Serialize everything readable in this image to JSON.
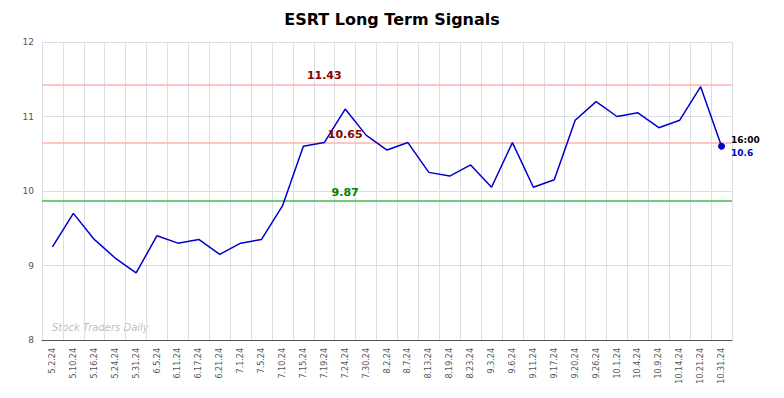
{
  "chart_data": {
    "type": "line",
    "title": "ESRT Long Term Signals",
    "categories": [
      "5.2.24",
      "5.10.24",
      "5.16.24",
      "5.24.24",
      "5.31.24",
      "6.5.24",
      "6.11.24",
      "6.17.24",
      "6.21.24",
      "7.1.24",
      "7.5.24",
      "7.10.24",
      "7.15.24",
      "7.19.24",
      "7.24.24",
      "7.30.24",
      "8.2.24",
      "8.7.24",
      "8.13.24",
      "8.19.24",
      "8.23.24",
      "9.3.24",
      "9.6.24",
      "9.11.24",
      "9.17.24",
      "9.20.24",
      "9.26.24",
      "10.1.24",
      "10.4.24",
      "10.9.24",
      "10.14.24",
      "10.21.24",
      "10.31.24"
    ],
    "values": [
      9.25,
      9.7,
      9.35,
      9.1,
      8.9,
      9.4,
      9.3,
      9.35,
      9.15,
      9.3,
      9.35,
      9.8,
      10.6,
      10.65,
      11.1,
      10.75,
      10.55,
      10.65,
      10.25,
      10.2,
      10.35,
      10.05,
      10.65,
      10.05,
      10.15,
      10.95,
      11.2,
      11.0,
      11.05,
      10.85,
      10.95,
      11.4,
      10.6
    ],
    "color": "#0000cc",
    "ylim": [
      8,
      12
    ],
    "yticks": [
      8,
      9,
      10,
      11,
      12
    ],
    "grid": true,
    "hlines": [
      {
        "value": 11.43,
        "label": "11.43",
        "color": "#ffb3b3",
        "label_color": "darkred",
        "x": "7.19.24"
      },
      {
        "value": 10.65,
        "label": "10.65",
        "color": "#ffb3b3",
        "label_color": "darkred",
        "x": "7.24.24"
      },
      {
        "value": 9.87,
        "label": "9.87",
        "color": "#44bb44",
        "label_color": "green",
        "x": "7.24.24"
      }
    ],
    "end_labels": [
      {
        "text": "16:00",
        "color": "black"
      },
      {
        "text": "10.6",
        "color": "#0000cc"
      }
    ],
    "watermark": "Stock Traders Daily"
  }
}
